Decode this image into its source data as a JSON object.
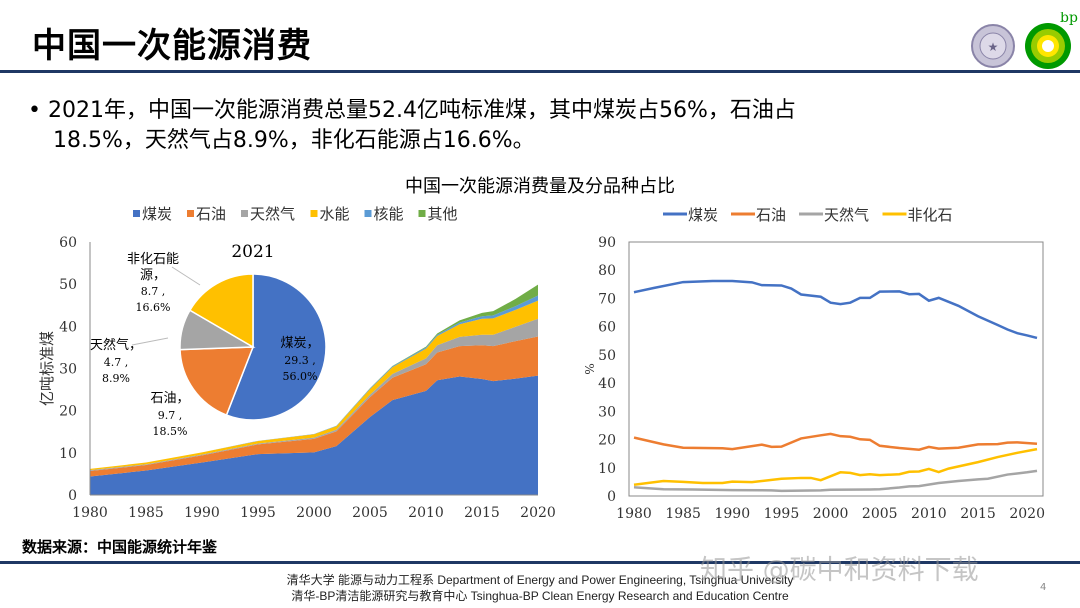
{
  "slide": {
    "title": "中国一次能源消费",
    "bullet_line1": "2021年，中国一次能源消费总量52.4亿吨标准煤，其中煤炭占56%，石油占",
    "bullet_line2": "18.5%，天然气占8.9%，非化石能源占16.6%。",
    "figure_title": "中国一次能源消费量及分品种占比",
    "source": "数据来源：中国能源统计年鉴",
    "footer_line1": "清华大学 能源与动力工程系 Department of Energy and Power Engineering, Tsinghua University",
    "footer_line2": "清华-BP清洁能源研究与教育中心 Tsinghua-BP Clean Energy Research and Education Centre",
    "page_number": "4",
    "watermark": "知乎 @碳中和资料下载",
    "logos": {
      "bp": "bp",
      "tsinghua": "清华大学"
    }
  },
  "chart_data": [
    {
      "type": "area",
      "stacked": true,
      "ylabel": "亿吨标准煤",
      "ylim": [
        0,
        60
      ],
      "yticks": [
        0,
        10,
        20,
        30,
        40,
        50,
        60
      ],
      "xlim": [
        1980,
        2020
      ],
      "xticks": [
        1980,
        1985,
        1990,
        1995,
        2000,
        2005,
        2010,
        2015,
        2020
      ],
      "legend": "top",
      "grid": false,
      "x": [
        1980,
        1985,
        1990,
        1995,
        2000,
        2002,
        2005,
        2007,
        2010,
        2011,
        2013,
        2015,
        2016,
        2018,
        2020
      ],
      "series": [
        {
          "name": "煤炭",
          "color": "#4472c4",
          "values": [
            4.4,
            5.8,
            7.7,
            9.7,
            10.1,
            11.6,
            18.5,
            22.5,
            24.7,
            27.2,
            28.1,
            27.5,
            27.0,
            27.6,
            28.3
          ]
        },
        {
          "name": "石油",
          "color": "#ed7d31",
          "values": [
            1.3,
            1.3,
            1.7,
            2.3,
            3.2,
            3.5,
            4.7,
            5.3,
            6.3,
            6.6,
            7.2,
            8.0,
            8.3,
            8.9,
            9.3
          ]
        },
        {
          "name": "天然气",
          "color": "#a5a5a5",
          "values": [
            0.2,
            0.2,
            0.2,
            0.2,
            0.3,
            0.4,
            0.6,
            0.9,
            1.4,
            1.7,
            2.2,
            2.5,
            2.7,
            3.4,
            4.2
          ]
        },
        {
          "name": "水能",
          "color": "#ffc000",
          "values": [
            0.3,
            0.4,
            0.5,
            0.6,
            0.8,
            0.8,
            1.3,
            1.6,
            2.3,
            2.2,
            3.0,
            3.8,
            3.9,
            4.0,
            4.3
          ]
        },
        {
          "name": "核能",
          "color": "#5b9bd5",
          "values": [
            0,
            0,
            0,
            0.05,
            0.06,
            0.1,
            0.2,
            0.2,
            0.3,
            0.3,
            0.4,
            0.6,
            0.7,
            0.9,
            1.2
          ]
        },
        {
          "name": "其他",
          "color": "#70ad47",
          "values": [
            0,
            0,
            0,
            0,
            0.02,
            0.03,
            0.05,
            0.1,
            0.2,
            0.3,
            0.5,
            0.8,
            1.0,
            1.7,
            2.6
          ]
        }
      ]
    },
    {
      "type": "pie",
      "title": "2021",
      "slices": [
        {
          "name": "煤炭",
          "value": 29.3,
          "percent": "56.0%",
          "color": "#4472c4"
        },
        {
          "name": "石油",
          "value": 9.7,
          "percent": "18.5%",
          "color": "#ed7d31"
        },
        {
          "name": "天然气",
          "value": 4.7,
          "percent": "8.9%",
          "color": "#a5a5a5"
        },
        {
          "name": "非化石能源",
          "value": 8.7,
          "percent": "16.6%",
          "color": "#ffc000"
        }
      ]
    },
    {
      "type": "line",
      "ylabel": "%",
      "ylim": [
        0,
        90
      ],
      "yticks": [
        0,
        10,
        20,
        30,
        40,
        50,
        60,
        70,
        80,
        90
      ],
      "xlim": [
        1980,
        2021
      ],
      "xticks": [
        1980,
        1985,
        1990,
        1995,
        2000,
        2005,
        2010,
        2015,
        2020
      ],
      "legend": "top",
      "grid": false,
      "series": [
        {
          "name": "煤炭",
          "color": "#4472c4",
          "points": [
            [
              1980,
              72.2
            ],
            [
              1982,
              73.7
            ],
            [
              1985,
              75.8
            ],
            [
              1988,
              76.2
            ],
            [
              1990,
              76.2
            ],
            [
              1992,
              75.7
            ],
            [
              1993,
              74.7
            ],
            [
              1995,
              74.6
            ],
            [
              1996,
              73.5
            ],
            [
              1997,
              71.4
            ],
            [
              1999,
              70.6
            ],
            [
              2000,
              68.5
            ],
            [
              2001,
              68.0
            ],
            [
              2002,
              68.5
            ],
            [
              2003,
              70.2
            ],
            [
              2004,
              70.2
            ],
            [
              2005,
              72.4
            ],
            [
              2007,
              72.5
            ],
            [
              2008,
              71.5
            ],
            [
              2009,
              71.6
            ],
            [
              2010,
              69.2
            ],
            [
              2011,
              70.2
            ],
            [
              2013,
              67.4
            ],
            [
              2015,
              63.7
            ],
            [
              2017,
              60.6
            ],
            [
              2018,
              59.0
            ],
            [
              2019,
              57.7
            ],
            [
              2020,
              56.9
            ],
            [
              2021,
              56.0
            ]
          ]
        },
        {
          "name": "石油",
          "color": "#ed7d31",
          "points": [
            [
              1980,
              20.7
            ],
            [
              1983,
              18.3
            ],
            [
              1985,
              17.1
            ],
            [
              1987,
              17.0
            ],
            [
              1989,
              16.9
            ],
            [
              1990,
              16.6
            ],
            [
              1993,
              18.2
            ],
            [
              1994,
              17.4
            ],
            [
              1995,
              17.5
            ],
            [
              1997,
              20.4
            ],
            [
              1999,
              21.5
            ],
            [
              2000,
              22.0
            ],
            [
              2001,
              21.2
            ],
            [
              2002,
              21.0
            ],
            [
              2003,
              20.1
            ],
            [
              2004,
              19.9
            ],
            [
              2005,
              17.8
            ],
            [
              2007,
              17.0
            ],
            [
              2009,
              16.4
            ],
            [
              2010,
              17.4
            ],
            [
              2011,
              16.8
            ],
            [
              2013,
              17.1
            ],
            [
              2015,
              18.3
            ],
            [
              2017,
              18.4
            ],
            [
              2018,
              18.9
            ],
            [
              2019,
              19.0
            ],
            [
              2021,
              18.5
            ]
          ]
        },
        {
          "name": "天然气",
          "color": "#a5a5a5",
          "points": [
            [
              1980,
              3.1
            ],
            [
              1983,
              2.4
            ],
            [
              1986,
              2.3
            ],
            [
              1990,
              2.1
            ],
            [
              1994,
              2.0
            ],
            [
              1995,
              1.8
            ],
            [
              1999,
              2.0
            ],
            [
              2000,
              2.2
            ],
            [
              2004,
              2.3
            ],
            [
              2005,
              2.4
            ],
            [
              2007,
              3.0
            ],
            [
              2008,
              3.4
            ],
            [
              2009,
              3.5
            ],
            [
              2011,
              4.6
            ],
            [
              2013,
              5.3
            ],
            [
              2015,
              5.9
            ],
            [
              2016,
              6.1
            ],
            [
              2018,
              7.6
            ],
            [
              2020,
              8.4
            ],
            [
              2021,
              8.9
            ]
          ]
        },
        {
          "name": "非化石",
          "color": "#ffc000",
          "points": [
            [
              1980,
              4.0
            ],
            [
              1983,
              5.3
            ],
            [
              1985,
              5.0
            ],
            [
              1987,
              4.6
            ],
            [
              1989,
              4.6
            ],
            [
              1990,
              5.1
            ],
            [
              1992,
              4.9
            ],
            [
              1995,
              6.1
            ],
            [
              1997,
              6.4
            ],
            [
              1998,
              6.4
            ],
            [
              1999,
              5.6
            ],
            [
              2001,
              8.4
            ],
            [
              2002,
              8.2
            ],
            [
              2003,
              7.4
            ],
            [
              2004,
              7.7
            ],
            [
              2005,
              7.4
            ],
            [
              2007,
              7.7
            ],
            [
              2008,
              8.6
            ],
            [
              2009,
              8.7
            ],
            [
              2010,
              9.6
            ],
            [
              2011,
              8.5
            ],
            [
              2012,
              9.7
            ],
            [
              2015,
              12.0
            ],
            [
              2017,
              13.8
            ],
            [
              2019,
              15.3
            ],
            [
              2021,
              16.6
            ]
          ]
        }
      ]
    }
  ]
}
